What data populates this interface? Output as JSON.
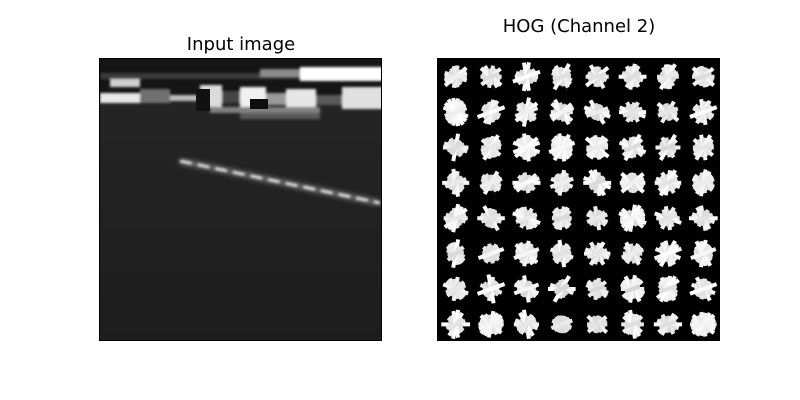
{
  "figure": {
    "left_title": "Input image",
    "right_title": "HOG (Channel 2)"
  },
  "panels": {
    "left": {
      "description_name": "night-road-camera-frame",
      "colormap": "grayscale"
    },
    "right": {
      "description_name": "hog-feature-visualization",
      "grid": [
        8,
        8
      ],
      "colormap": "grayscale"
    }
  }
}
